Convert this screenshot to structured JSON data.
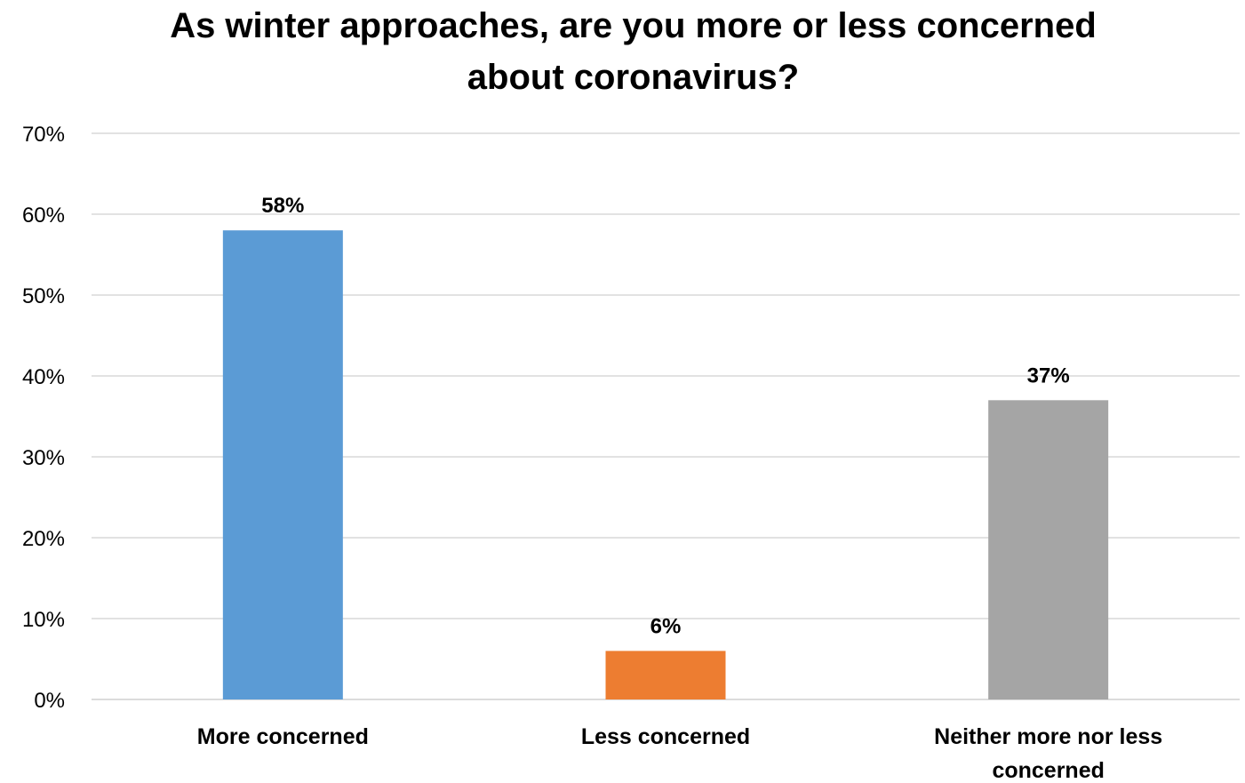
{
  "chart_data": {
    "type": "bar",
    "title_lines": [
      "As winter approaches, are you more or less concerned",
      "about coronavirus?"
    ],
    "categories": [
      [
        "More concerned"
      ],
      [
        "Less concerned"
      ],
      [
        "Neither more nor less",
        "concerned"
      ]
    ],
    "values": [
      58,
      6,
      37
    ],
    "data_labels": [
      "58%",
      "6%",
      "37%"
    ],
    "colors": [
      "#5b9bd5",
      "#ed7d31",
      "#a5a5a5"
    ],
    "ylim": [
      0,
      70
    ],
    "yticks": [
      0,
      10,
      20,
      30,
      40,
      50,
      60,
      70
    ],
    "ytick_labels": [
      "0%",
      "10%",
      "20%",
      "30%",
      "40%",
      "50%",
      "60%",
      "70%"
    ],
    "grid": true,
    "legend": "none",
    "gridline_color": "#d9d9d9"
  }
}
